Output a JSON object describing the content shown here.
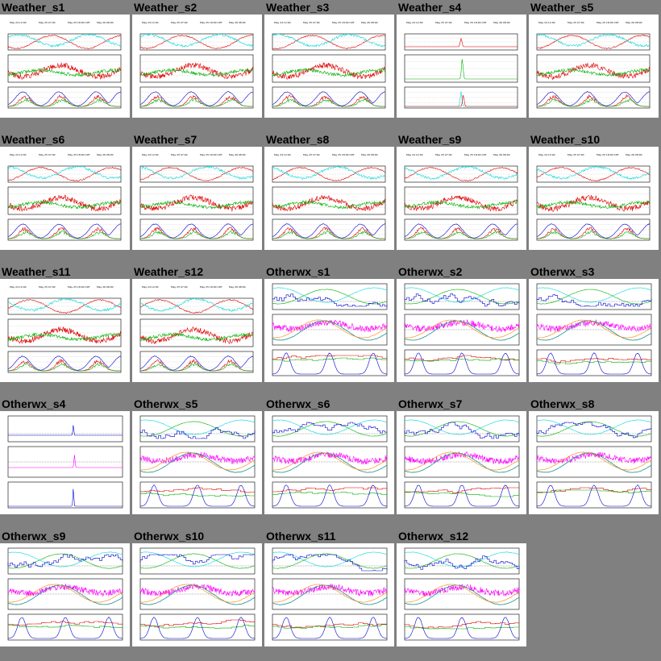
{
  "page": {
    "background": "#808080"
  },
  "colors": {
    "red": "#e00000",
    "green": "#00b000",
    "cyan": "#00d8d8",
    "blue": "#0000d0",
    "magenta": "#ff00ff",
    "teal": "#209090",
    "orange": "#ff8000",
    "black": "#000000"
  },
  "figures": [
    {
      "title": "Weather_s1",
      "kind": "weather"
    },
    {
      "title": "Weather_s2",
      "kind": "weather"
    },
    {
      "title": "Weather_s3",
      "kind": "weather"
    },
    {
      "title": "Weather_s4",
      "kind": "weather",
      "sparse": true
    },
    {
      "title": "Weather_s5",
      "kind": "weather"
    },
    {
      "title": "Weather_s6",
      "kind": "weather"
    },
    {
      "title": "Weather_s7",
      "kind": "weather"
    },
    {
      "title": "Weather_s8",
      "kind": "weather"
    },
    {
      "title": "Weather_s9",
      "kind": "weather"
    },
    {
      "title": "Weather_s10",
      "kind": "weather"
    },
    {
      "title": "Weather_s11",
      "kind": "weather"
    },
    {
      "title": "Weather_s12",
      "kind": "weather"
    },
    {
      "title": "Otherwx_s1",
      "kind": "otherwx"
    },
    {
      "title": "Otherwx_s2",
      "kind": "otherwx"
    },
    {
      "title": "Otherwx_s3",
      "kind": "otherwx"
    },
    {
      "title": "Otherwx_s4",
      "kind": "otherwx",
      "sparse": true
    },
    {
      "title": "Otherwx_s5",
      "kind": "otherwx"
    },
    {
      "title": "Otherwx_s6",
      "kind": "otherwx"
    },
    {
      "title": "Otherwx_s7",
      "kind": "otherwx"
    },
    {
      "title": "Otherwx_s8",
      "kind": "otherwx"
    },
    {
      "title": "Otherwx_s9",
      "kind": "otherwx"
    },
    {
      "title": "Otherwx_s10",
      "kind": "otherwx"
    },
    {
      "title": "Otherwx_s11",
      "kind": "otherwx"
    },
    {
      "title": "Otherwx_s12",
      "kind": "otherwx"
    }
  ],
  "chart_data": {
    "type": "line",
    "panels_per_figure": 3,
    "x_tick_labels": [
      "May 24 12:00",
      "May 25 07:00",
      "May 25 18:00 CDT",
      "May 26 08:00"
    ],
    "weather_series": [
      {
        "panel": 1,
        "color": "#e00000"
      },
      {
        "panel": 1,
        "color": "#00d8d8"
      },
      {
        "panel": 2,
        "color": "#e00000"
      },
      {
        "panel": 2,
        "color": "#00b000"
      },
      {
        "panel": 3,
        "color": "#0000d0"
      },
      {
        "panel": 3,
        "color": "#e00000"
      },
      {
        "panel": 3,
        "color": "#00b000"
      }
    ],
    "otherwx_series": [
      {
        "panel": 1,
        "color": "#00b000"
      },
      {
        "panel": 1,
        "color": "#00d8d8"
      },
      {
        "panel": 1,
        "color": "#0000d0"
      },
      {
        "panel": 2,
        "color": "#ff00ff"
      },
      {
        "panel": 2,
        "color": "#209090"
      },
      {
        "panel": 2,
        "color": "#ff8000"
      },
      {
        "panel": 3,
        "color": "#e00000"
      },
      {
        "panel": 3,
        "color": "#00b000"
      },
      {
        "panel": 3,
        "color": "#0000d0"
      }
    ]
  }
}
